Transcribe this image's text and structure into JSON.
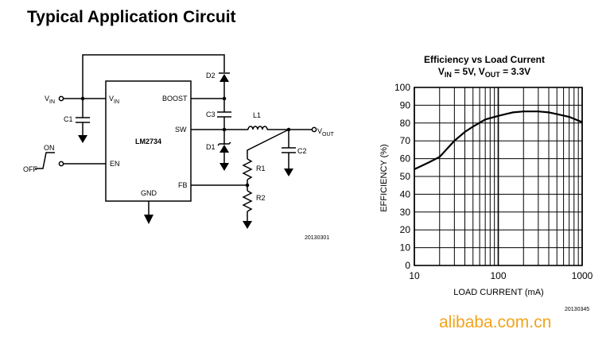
{
  "page": {
    "title": "Typical Application Circuit",
    "watermark": "alibaba.com.cn"
  },
  "circuit": {
    "ic_name": "LM2734",
    "pins": {
      "vin": "IN",
      "boost": "BOOST",
      "sw": "SW",
      "en": "EN",
      "gnd": "GND",
      "fb": "FB"
    },
    "labels": {
      "vin_main": "V",
      "vin_sub": "IN",
      "vout_main": "V",
      "vout_sub": "OUT",
      "on": "ON",
      "off": "OFF",
      "c1": "C1",
      "c2": "C2",
      "c3": "C3",
      "d1": "D1",
      "d2": "D2",
      "l1": "L1",
      "r1": "R1",
      "r2": "R2",
      "pin_v": "V"
    },
    "fig_id": "20130301"
  },
  "chart_data": {
    "type": "line",
    "title": "Efficiency vs Load Current",
    "subtitle_parts": [
      "V",
      "IN",
      " = 5V, V",
      "OUT",
      " = 3.3V"
    ],
    "xlabel": "LOAD CURRENT (mA)",
    "ylabel": "EFFICIENCY (%)",
    "x_scale": "log",
    "xlim": [
      10,
      1000
    ],
    "ylim": [
      0,
      100
    ],
    "x_ticks": [
      "10",
      "100",
      "1000"
    ],
    "y_ticks": [
      "0",
      "10",
      "20",
      "30",
      "40",
      "50",
      "60",
      "70",
      "80",
      "90",
      "100"
    ],
    "grid": true,
    "series": [
      {
        "x": [
          10,
          15,
          20,
          25,
          30,
          40,
          50,
          70,
          100,
          150,
          200,
          300,
          400,
          500,
          700,
          1000
        ],
        "y": [
          54,
          58,
          61,
          66,
          70,
          75,
          78,
          82,
          84,
          86,
          86.5,
          86.5,
          86,
          85,
          83.5,
          80.5
        ]
      }
    ],
    "fig_id": "20130345"
  }
}
